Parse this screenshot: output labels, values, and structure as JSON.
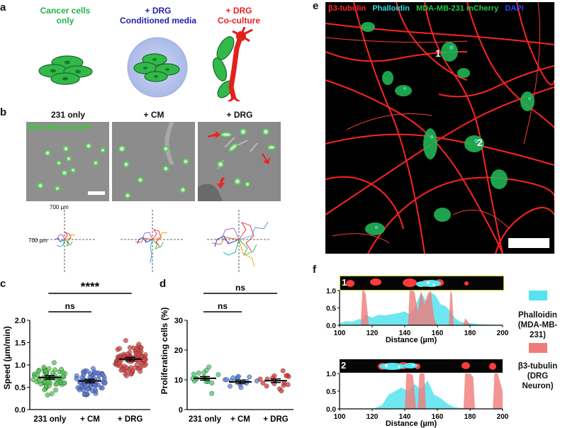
{
  "panel_a": {
    "letter": "a",
    "conditions": [
      {
        "line1": "Cancer cells",
        "line2": "only",
        "color": "#22b34a"
      },
      {
        "line1": "+ DRG",
        "line2": "Conditioned media",
        "color": "#1f1fa8",
        "color2": "#1f1fa8"
      },
      {
        "line1": "+ DRG",
        "line2": "Co-culture",
        "color": "#e8211d"
      }
    ]
  },
  "panel_b": {
    "letter": "b",
    "labels": [
      "231 only",
      "+ CM",
      "+ DRG"
    ],
    "overlay_label": "MDA-MB-231-GFP",
    "track_scale_x": "700 µm",
    "track_scale_y": "700 µm"
  },
  "panel_c": {
    "letter": "c",
    "chart_data": {
      "type": "scatter",
      "categories": [
        "231 only",
        "+ CM",
        "+ DRG"
      ],
      "means": [
        0.72,
        0.64,
        1.13
      ],
      "ylabel": "Speed (µm/min)",
      "ylim": [
        0.0,
        2.0
      ],
      "yticks": [
        "0.0",
        "0.5",
        "1.0",
        "1.5",
        "2.0"
      ],
      "colors": [
        "#4cc94c",
        "#5577dd",
        "#dd4444"
      ],
      "significance": [
        {
          "from": 0,
          "to": 1,
          "label": "ns"
        },
        {
          "from": 0,
          "to": 2,
          "label": "****"
        }
      ]
    }
  },
  "panel_d": {
    "letter": "d",
    "chart_data": {
      "type": "scatter",
      "categories": [
        "231 only",
        "+ CM",
        "+ DRG"
      ],
      "means": [
        10.5,
        9.3,
        9.7
      ],
      "ylabel": "Proliferating cells (%)",
      "ylim": [
        0,
        30
      ],
      "yticks": [
        "0",
        "10",
        "20",
        "30"
      ],
      "colors": [
        "#44cc66",
        "#5588dd",
        "#dd3333"
      ],
      "significance": [
        {
          "from": 0,
          "to": 1,
          "label": "ns"
        },
        {
          "from": 0,
          "to": 2,
          "label": "ns"
        }
      ]
    }
  },
  "panel_e": {
    "letter": "e",
    "legend": [
      {
        "text": "β3-tubulin",
        "color": "#ff2a2a"
      },
      {
        "text": "Phalloidin",
        "color": "#33dddd"
      },
      {
        "text": "MDA-MB-231 mCherry",
        "color": "#22cc44"
      },
      {
        "text": "DAPI",
        "color": "#3344ff"
      }
    ],
    "markers": [
      "1",
      "2"
    ]
  },
  "panel_f": {
    "letter": "f",
    "profiles": [
      {
        "id": "1",
        "chart_data": {
          "type": "area",
          "xlabel": "Distance (µm)",
          "xlim": [
            100,
            200
          ],
          "ylim": [
            0,
            1.0
          ],
          "xticks": [
            "100",
            "120",
            "140",
            "160",
            "180",
            "200"
          ],
          "yticks": [
            "0.0",
            "0.5",
            "1.0"
          ],
          "series": [
            {
              "name": "Phalloidin (MDA-MB-231)",
              "color": "#55e3ee",
              "x": [
                100,
                104,
                108,
                112,
                114,
                116,
                120,
                124,
                128,
                132,
                136,
                140,
                143,
                146,
                150,
                153,
                156,
                159,
                162,
                165,
                168,
                171,
                174,
                178,
                182,
                186,
                190,
                200
              ],
              "y": [
                0.05,
                0.12,
                0.1,
                0.18,
                0.15,
                0.3,
                0.22,
                0.3,
                0.28,
                0.32,
                0.35,
                0.4,
                0.3,
                0.5,
                0.95,
                0.7,
                0.95,
                0.85,
                0.6,
                0.55,
                0.4,
                0.2,
                0.1,
                0.08,
                0.05,
                0.03,
                0.02,
                0.0
              ]
            },
            {
              "name": "β3-tubulin (DRG Neuron)",
              "color": "#f07a7a",
              "x": [
                100,
                110,
                113,
                114,
                115,
                116,
                118,
                140,
                142,
                143,
                145,
                146,
                148,
                150,
                152,
                154,
                156,
                158,
                160,
                165,
                167,
                168,
                169,
                170,
                176,
                177,
                178,
                180,
                200
              ],
              "y": [
                0,
                0,
                0,
                1.0,
                1.0,
                0.9,
                0,
                0,
                0,
                1.0,
                1.0,
                0.95,
                0.4,
                1.0,
                0.6,
                0.9,
                1.0,
                0.2,
                0,
                0,
                0,
                1.0,
                0.9,
                0,
                0,
                0.2,
                0.15,
                0,
                0
              ]
            }
          ]
        }
      },
      {
        "id": "2",
        "chart_data": {
          "type": "area",
          "xlabel": "Distance (µm)",
          "xlim": [
            100,
            200
          ],
          "ylim": [
            0,
            1.0
          ],
          "xticks": [
            "100",
            "120",
            "140",
            "160",
            "180",
            "200"
          ],
          "yticks": [
            "0.0",
            "0.5",
            "1.0"
          ],
          "series": [
            {
              "name": "Phalloidin (MDA-MB-231)",
              "color": "#55e3ee",
              "x": [
                100,
                120,
                126,
                130,
                134,
                138,
                142,
                146,
                150,
                154,
                158,
                162,
                166,
                170,
                176,
                182,
                190,
                200
              ],
              "y": [
                0,
                0,
                0.1,
                0.4,
                0.5,
                0.6,
                0.5,
                0.7,
                0.55,
                0.8,
                0.4,
                0.3,
                0.15,
                0.05,
                0.02,
                0.0,
                0.0,
                0.0
              ]
            },
            {
              "name": "β3-tubulin (DRG Neuron)",
              "color": "#f07a7a",
              "x": [
                100,
                138,
                140,
                141,
                143,
                145,
                147,
                148,
                149,
                150,
                152,
                153,
                155,
                158,
                160,
                176,
                177,
                180,
                182,
                183,
                194,
                195,
                197,
                200
              ],
              "y": [
                0,
                0,
                0,
                1.0,
                1.0,
                0.95,
                0,
                0,
                1.0,
                1.0,
                1.0,
                0,
                0,
                0,
                0,
                0,
                1.0,
                1.0,
                0.9,
                0,
                0,
                1.0,
                1.0,
                0.5
              ]
            }
          ]
        }
      }
    ],
    "legend": [
      {
        "line1": "Phalloidin",
        "line2": "(MDA-MB-231)",
        "color": "#55e3ee"
      },
      {
        "line1": "β3-tubulin",
        "line2": "(DRG",
        "line3": "Neuron)",
        "color": "#f07a7a"
      }
    ]
  }
}
